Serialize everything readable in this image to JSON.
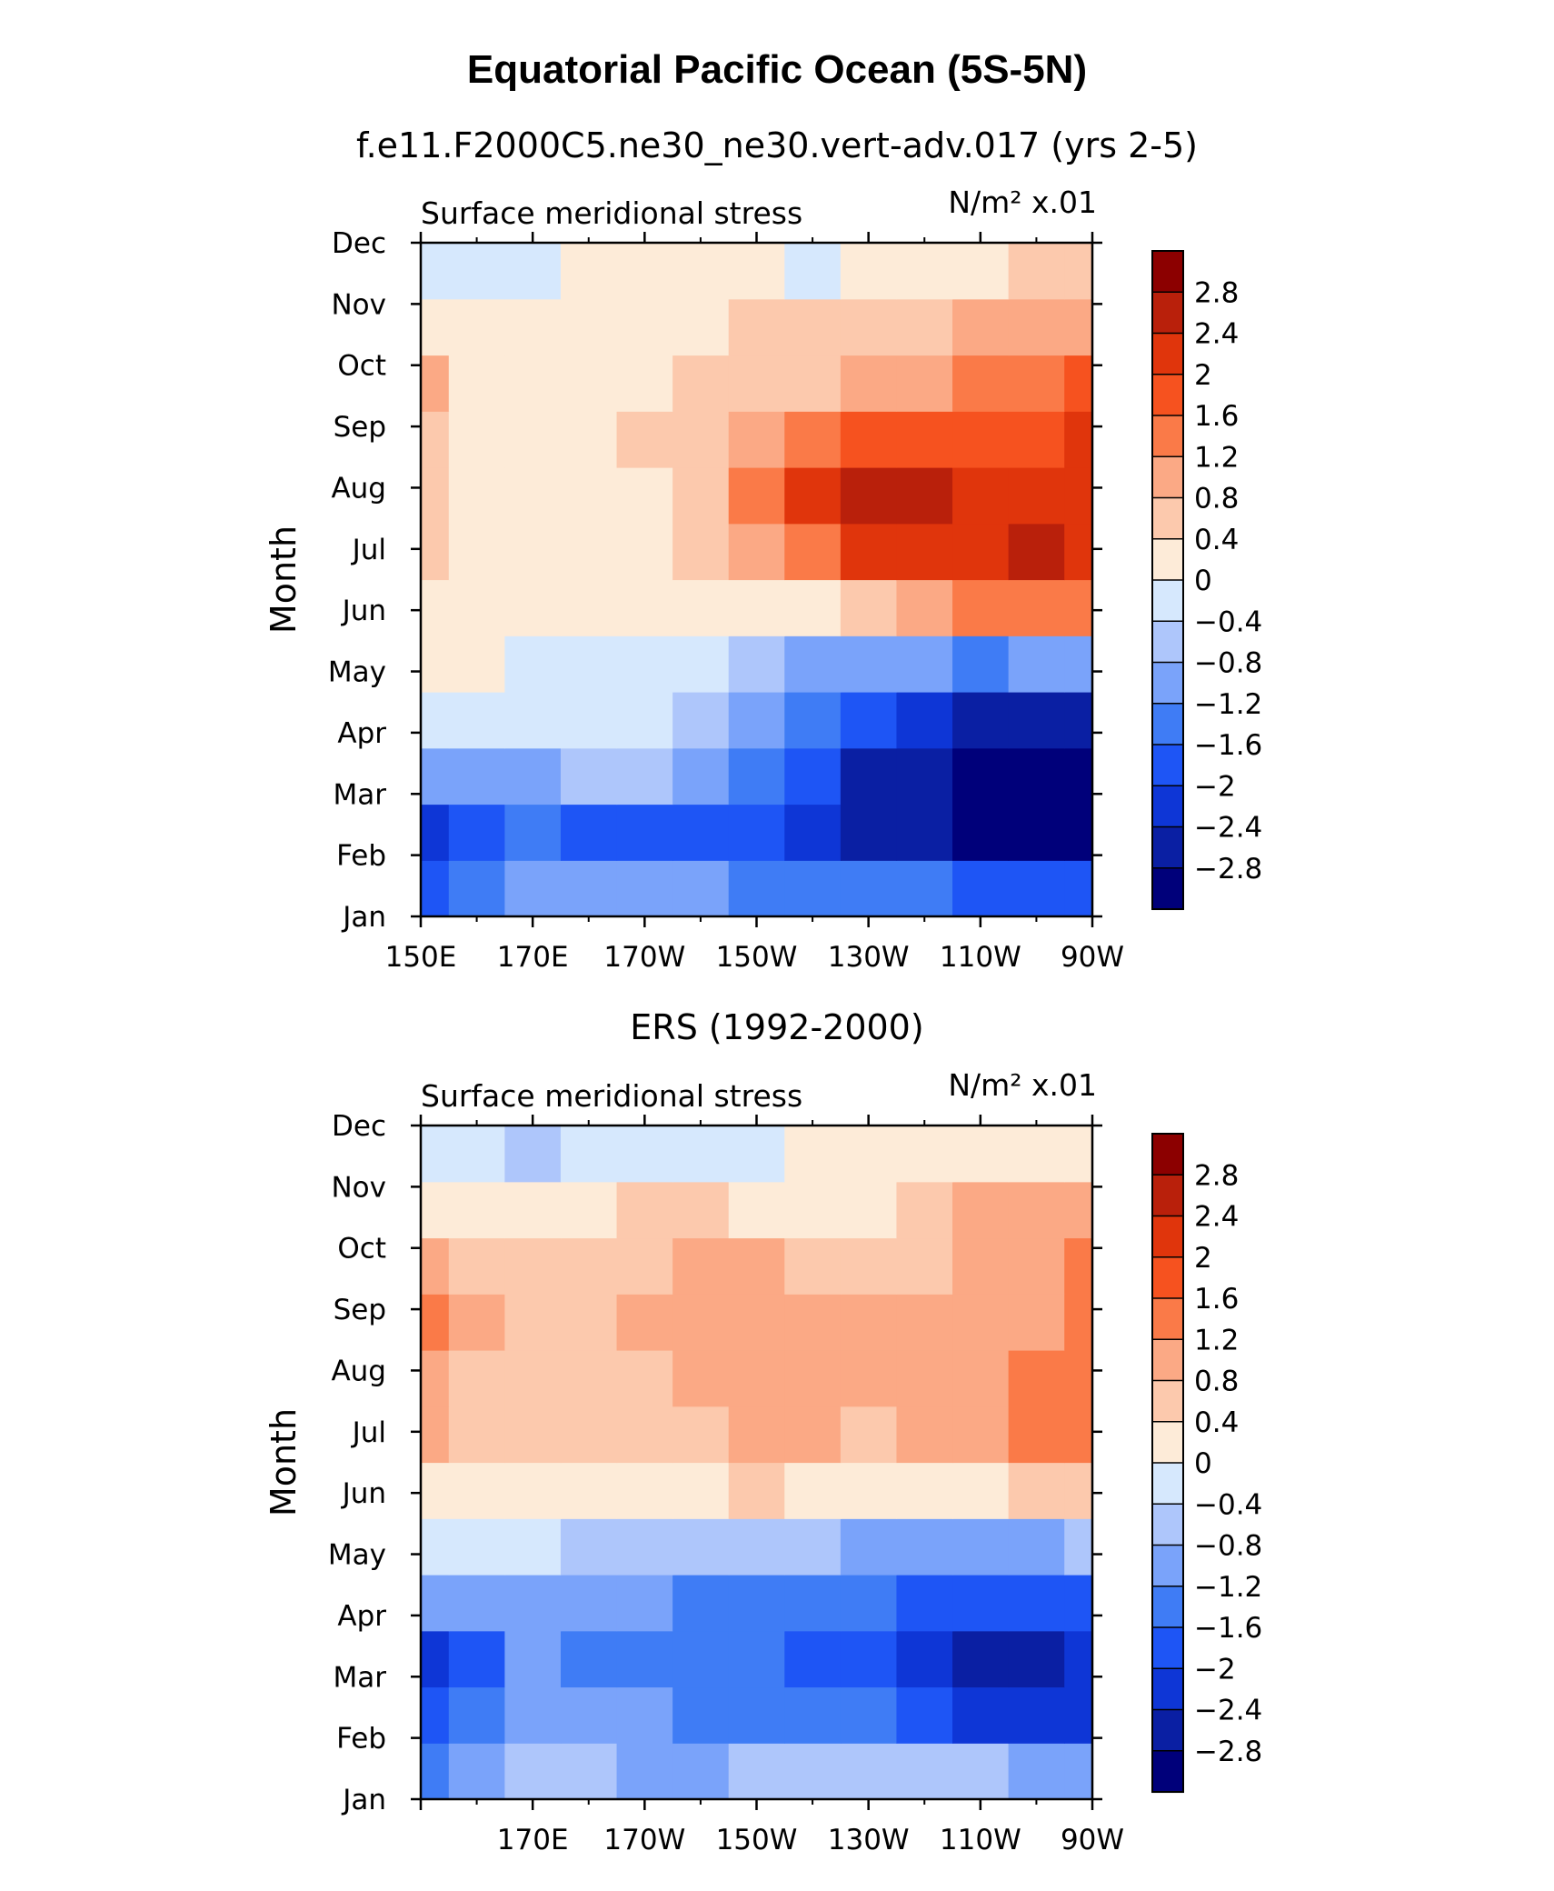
{
  "title": "Equatorial Pacific Ocean (5S-5N)",
  "palette": [
    "#00007a",
    "#0a1fa3",
    "#0e36d6",
    "#1e55f5",
    "#3f7cf5",
    "#7aa3fa",
    "#aec6fb",
    "#d6e8fd",
    "#fdebd8",
    "#fcc9ad",
    "#fba985",
    "#fa7a48",
    "#f6521f",
    "#e0350c",
    "#b9200b",
    "#8c0000"
  ],
  "chart_data": [
    {
      "type": "heatmap",
      "title": "f.e11.F2000C5.ne30_ne30.vert-adv.017 (yrs 2-5)",
      "left_label": "Surface meridional stress",
      "right_label": "N/m² x.01",
      "ylabel": "Month",
      "xlabel": "",
      "xlim": [
        150,
        270
      ],
      "x_ticks": [
        150,
        170,
        190,
        210,
        230,
        250,
        270
      ],
      "x_tick_labels": [
        "150E",
        "170E",
        "170W",
        "150W",
        "130W",
        "110W",
        "90W"
      ],
      "y_tick_labels": [
        "Jan",
        "Feb",
        "Mar",
        "Apr",
        "May",
        "Jun",
        "Jul",
        "Aug",
        "Sep",
        "Oct",
        "Nov",
        "Dec"
      ],
      "x": [
        150,
        160,
        170,
        180,
        190,
        200,
        210,
        220,
        230,
        240,
        250,
        260,
        270
      ],
      "months": [
        1,
        2,
        3,
        4,
        5,
        6,
        7,
        8,
        9,
        10,
        11,
        12
      ],
      "values": [
        [
          -1.7,
          -1.4,
          -1.2,
          -1.2,
          -1.2,
          -1.2,
          -1.3,
          -1.4,
          -1.5,
          -1.6,
          -1.8,
          -2.0,
          -2.0
        ],
        [
          -2.3,
          -1.9,
          -1.6,
          -1.9,
          -1.8,
          -1.9,
          -2.0,
          -2.2,
          -2.5,
          -2.8,
          -3.0,
          -3.2,
          -3.1
        ],
        [
          -1.0,
          -0.9,
          -0.9,
          -0.8,
          -0.8,
          -0.9,
          -1.4,
          -2.0,
          -2.5,
          -2.8,
          -3.0,
          -3.3,
          -3.3
        ],
        [
          -0.3,
          -0.3,
          -0.3,
          -0.3,
          -0.4,
          -0.6,
          -1.1,
          -1.6,
          -2.0,
          -2.3,
          -2.6,
          -2.8,
          -2.7
        ],
        [
          0.1,
          0.0,
          -0.2,
          -0.3,
          -0.3,
          -0.4,
          -0.6,
          -0.9,
          -1.1,
          -1.2,
          -1.3,
          -1.2,
          -1.0
        ],
        [
          0.2,
          0.2,
          0.1,
          0.1,
          0.0,
          0.0,
          0.0,
          0.3,
          0.7,
          1.0,
          1.2,
          1.3,
          1.3
        ],
        [
          0.4,
          0.2,
          0.2,
          0.2,
          0.3,
          0.5,
          0.9,
          1.5,
          2.0,
          2.2,
          2.3,
          2.4,
          2.3
        ],
        [
          0.5,
          0.3,
          0.2,
          0.2,
          0.3,
          0.6,
          1.2,
          2.0,
          2.4,
          2.4,
          2.2,
          2.0,
          2.0
        ],
        [
          0.6,
          0.3,
          0.2,
          0.3,
          0.4,
          0.5,
          0.9,
          1.5,
          1.8,
          1.8,
          1.7,
          1.9,
          2.0
        ],
        [
          0.8,
          0.3,
          0.2,
          0.3,
          0.3,
          0.4,
          0.5,
          0.7,
          0.9,
          1.0,
          1.2,
          1.5,
          1.6
        ],
        [
          0.3,
          0.1,
          0.1,
          0.2,
          0.2,
          0.3,
          0.4,
          0.5,
          0.6,
          0.7,
          0.9,
          1.0,
          1.1
        ],
        [
          -0.1,
          -0.2,
          -0.1,
          0.1,
          0.1,
          0.1,
          0.0,
          -0.1,
          0.1,
          0.2,
          0.3,
          0.4,
          0.4
        ]
      ],
      "levels": [
        -2.8,
        -2.4,
        -2.0,
        -1.6,
        -1.2,
        -0.8,
        -0.4,
        0,
        0.4,
        0.8,
        1.2,
        1.6,
        2.0,
        2.4,
        2.8
      ],
      "colorbar_labels": [
        "2.8",
        "2.4",
        "2",
        "1.6",
        "1.2",
        "0.8",
        "0.4",
        "0",
        "−0.4",
        "−0.8",
        "−1.2",
        "−1.6",
        "−2",
        "−2.4",
        "−2.8"
      ]
    },
    {
      "type": "heatmap",
      "title": "ERS (1992-2000)",
      "left_label": "Surface meridional stress",
      "right_label": "N/m² x.01",
      "ylabel": "Month",
      "xlabel": "",
      "xlim": [
        150,
        270
      ],
      "x_ticks": [
        150,
        170,
        190,
        210,
        230,
        250,
        270
      ],
      "x_tick_labels": [
        "",
        "170E",
        "170W",
        "150W",
        "130W",
        "110W",
        "90W"
      ],
      "y_tick_labels": [
        "Jan",
        "Feb",
        "Mar",
        "Apr",
        "May",
        "Jun",
        "Jul",
        "Aug",
        "Sep",
        "Oct",
        "Nov",
        "Dec"
      ],
      "x": [
        150,
        160,
        170,
        180,
        190,
        200,
        210,
        220,
        230,
        240,
        250,
        260,
        270
      ],
      "months": [
        1,
        2,
        3,
        4,
        5,
        6,
        7,
        8,
        9,
        10,
        11,
        12
      ],
      "values": [
        [
          -1.5,
          -1.2,
          -0.8,
          -0.6,
          -1.0,
          -0.9,
          -0.8,
          -0.7,
          -0.6,
          -0.6,
          -0.8,
          -1.0,
          -1.1
        ],
        [
          -2.0,
          -1.6,
          -1.0,
          -1.1,
          -1.2,
          -1.3,
          -1.4,
          -1.5,
          -1.6,
          -1.9,
          -2.1,
          -2.2,
          -2.3
        ],
        [
          -2.1,
          -1.8,
          -1.1,
          -1.3,
          -1.3,
          -1.4,
          -1.6,
          -1.8,
          -2.0,
          -2.3,
          -2.5,
          -2.6,
          -2.4
        ],
        [
          -1.1,
          -1.0,
          -0.9,
          -0.9,
          -1.2,
          -1.3,
          -1.5,
          -1.4,
          -1.6,
          -1.8,
          -1.9,
          -1.9,
          -1.8
        ],
        [
          -0.3,
          -0.3,
          -0.4,
          -0.5,
          -0.6,
          -0.7,
          -0.8,
          -0.8,
          -0.9,
          -0.9,
          -1.0,
          -0.9,
          -0.8
        ],
        [
          0.2,
          0.3,
          0.3,
          0.2,
          0.3,
          0.3,
          0.4,
          0.3,
          0.3,
          0.2,
          0.3,
          0.5,
          0.6
        ],
        [
          0.8,
          0.5,
          0.5,
          0.5,
          0.6,
          0.7,
          0.8,
          0.8,
          0.7,
          0.8,
          1.0,
          1.4,
          1.4
        ],
        [
          0.8,
          0.6,
          0.6,
          0.6,
          0.7,
          0.9,
          1.0,
          1.0,
          0.9,
          0.9,
          1.0,
          1.3,
          1.3
        ],
        [
          1.2,
          0.8,
          0.7,
          0.7,
          0.9,
          1.0,
          1.0,
          1.0,
          1.0,
          0.9,
          1.0,
          1.1,
          1.2
        ],
        [
          0.8,
          0.7,
          0.6,
          0.6,
          0.7,
          0.8,
          0.8,
          0.7,
          0.6,
          0.7,
          0.9,
          1.0,
          1.3
        ],
        [
          0.2,
          0.3,
          0.3,
          0.3,
          0.4,
          0.4,
          0.2,
          0.2,
          0.2,
          0.5,
          0.8,
          0.8,
          0.9
        ],
        [
          -0.2,
          -0.3,
          -0.5,
          -0.2,
          -0.1,
          -0.2,
          -0.1,
          0.0,
          0.1,
          0.2,
          0.3,
          0.3,
          0.3
        ]
      ],
      "levels": [
        -2.8,
        -2.4,
        -2.0,
        -1.6,
        -1.2,
        -0.8,
        -0.4,
        0,
        0.4,
        0.8,
        1.2,
        1.6,
        2.0,
        2.4,
        2.8
      ],
      "colorbar_labels": [
        "2.8",
        "2.4",
        "2",
        "1.6",
        "1.2",
        "0.8",
        "0.4",
        "0",
        "−0.4",
        "−0.8",
        "−1.2",
        "−1.6",
        "−2",
        "−2.4",
        "−2.8"
      ]
    }
  ]
}
